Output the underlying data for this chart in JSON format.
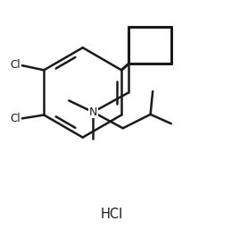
{
  "bg_color": "#ffffff",
  "line_color": "#1a1a1a",
  "line_width": 1.8,
  "hcl_label": "HCl",
  "cl_label": "Cl",
  "N_label": "N"
}
